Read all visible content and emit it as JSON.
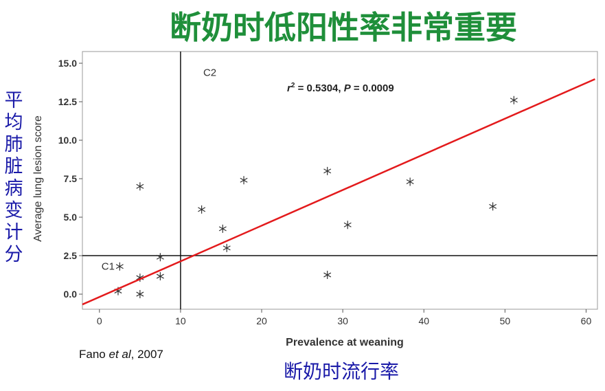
{
  "slide_title": "断奶时低阳性率非常重要",
  "side_label": "平均肺脏病变计分",
  "bottom_label": "断奶时流行率",
  "citation": [
    "Fano ",
    "et al",
    ", 2007"
  ],
  "chart_data": {
    "type": "scatter",
    "xlabel": "Prevalence at weaning",
    "ylabel": "Average lung lesion score",
    "x": [
      2.5,
      2.3,
      5.0,
      5.0,
      5.0,
      7.5,
      7.5,
      12.6,
      15.2,
      15.7,
      17.8,
      28.1,
      28.1,
      30.6,
      38.3,
      48.5,
      51.1
    ],
    "values": [
      1.8,
      0.2,
      7.0,
      1.07,
      0,
      2.4,
      1.16,
      5.5,
      4.25,
      3.0,
      7.4,
      8.0,
      1.25,
      4.5,
      7.3,
      5.7,
      12.6
    ],
    "color": "#333333",
    "xlim": [
      -2.1,
      61.4
    ],
    "ylim": [
      -0.98,
      15.76
    ],
    "xticks": [
      0,
      10,
      20,
      30,
      40,
      50,
      60
    ],
    "yticks": [
      {
        "value": 0,
        "label": "0.0"
      },
      {
        "value": 2.5,
        "label": "2.5"
      },
      {
        "value": 5,
        "label": "5.0"
      },
      {
        "value": 7.5,
        "label": "7.5"
      },
      {
        "value": 10,
        "label": "10.0"
      },
      {
        "value": 12.5,
        "label": "12.5"
      },
      {
        "value": 15,
        "label": "15.0"
      }
    ],
    "reference_lines": {
      "x": 10,
      "y": 2.5
    },
    "trend_line": {
      "x": [
        -2.1,
        61.1
      ],
      "y": [
        -0.67,
        13.97
      ],
      "color": "#e31a1c"
    },
    "quadrant_labels": [
      {
        "text": "C1",
        "x": 0.25,
        "y": 1.8
      },
      {
        "text": "C2",
        "x": 12.8,
        "y": 14.4
      }
    ],
    "stat_annotation": [
      "r",
      "2",
      " = 0.5304, ",
      "P",
      " = 0.0009"
    ]
  }
}
